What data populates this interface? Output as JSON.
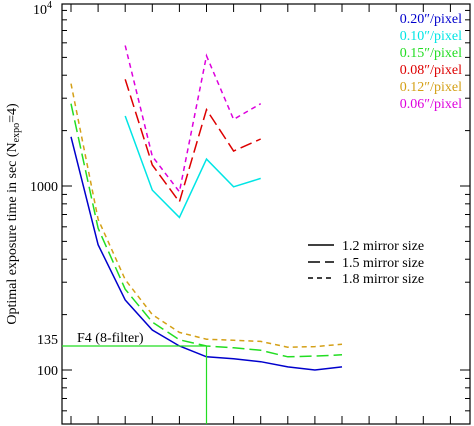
{
  "chart_data": {
    "type": "line",
    "title": "",
    "xlabel": "",
    "ylabel": {
      "prefix": "Optimal exposure time in sec (N",
      "subscript": "expo",
      "suffix": "=4)"
    },
    "y_scale": "log",
    "ylim": [
      40,
      10000
    ],
    "xlim": [
      0,
      15.5
    ],
    "y_ticks": [
      {
        "value": 100,
        "label": "100"
      },
      {
        "value": 1000,
        "label": "1000"
      },
      {
        "value": 10000,
        "label": "10",
        "exponent": "4"
      }
    ],
    "x_tick_count": 16,
    "legend_pixel_scale": {
      "position": "top-right",
      "entries": [
        {
          "label": "0.20″/pixel",
          "color": "#0000cc"
        },
        {
          "label": "0.10″/pixel",
          "color": "#00e5e5"
        },
        {
          "label": "0.15″/pixel",
          "color": "#22dd22"
        },
        {
          "label": "0.08″/pixel",
          "color": "#dd0000"
        },
        {
          "label": "0.12″/pixel",
          "color": "#d4a017"
        },
        {
          "label": "0.06″/pixel",
          "color": "#dd00dd"
        }
      ]
    },
    "legend_mirror": {
      "position": "middle-right",
      "entries": [
        {
          "label": "1.2 mirror size",
          "dash": "solid"
        },
        {
          "label": "1.5 mirror size",
          "dash": "long-dash"
        },
        {
          "label": "1.8 mirror size",
          "dash": "short-dash"
        }
      ]
    },
    "annotation": {
      "label": "F4 (8-filter)",
      "value_label": "135",
      "y": 135,
      "x": 5.0,
      "color": "#22dd22"
    },
    "series": [
      {
        "color": "#0000cc",
        "dash": "solid",
        "points": [
          [
            0,
            1850
          ],
          [
            1,
            480
          ],
          [
            2,
            240
          ],
          [
            3,
            165
          ],
          [
            4,
            135
          ],
          [
            5,
            118
          ],
          [
            6,
            115
          ],
          [
            7,
            111
          ],
          [
            8,
            104
          ],
          [
            9,
            100
          ],
          [
            10,
            104
          ]
        ]
      },
      {
        "color": "#22dd22",
        "dash": "long-dash",
        "points": [
          [
            0,
            2800
          ],
          [
            1,
            590
          ],
          [
            2,
            275
          ],
          [
            3,
            182
          ],
          [
            4,
            146
          ],
          [
            5,
            135
          ],
          [
            6,
            132
          ],
          [
            7,
            128
          ],
          [
            8,
            118
          ],
          [
            9,
            119
          ],
          [
            10,
            121
          ]
        ]
      },
      {
        "color": "#d4a017",
        "dash": "short-dash",
        "points": [
          [
            0,
            3600
          ],
          [
            1,
            660
          ],
          [
            2,
            310
          ],
          [
            3,
            200
          ],
          [
            4,
            160
          ],
          [
            5,
            147
          ],
          [
            6,
            145
          ],
          [
            7,
            143
          ],
          [
            8,
            133
          ],
          [
            9,
            134
          ],
          [
            10,
            138
          ]
        ]
      },
      {
        "color": "#00e5e5",
        "dash": "solid",
        "points": [
          [
            2,
            2400
          ],
          [
            3,
            950
          ],
          [
            4,
            675
          ],
          [
            5,
            1400
          ],
          [
            6,
            990
          ],
          [
            7,
            1100
          ]
        ]
      },
      {
        "color": "#dd0000",
        "dash": "long-dash",
        "points": [
          [
            2,
            3800
          ],
          [
            3,
            1300
          ],
          [
            4,
            820
          ],
          [
            5,
            2600
          ],
          [
            6,
            1550
          ],
          [
            7,
            1800
          ]
        ]
      },
      {
        "color": "#dd00dd",
        "dash": "short-dash",
        "points": [
          [
            2,
            5800
          ],
          [
            3,
            1450
          ],
          [
            4,
            930
          ],
          [
            5,
            5100
          ],
          [
            6,
            2300
          ],
          [
            7,
            2800
          ]
        ]
      }
    ]
  }
}
